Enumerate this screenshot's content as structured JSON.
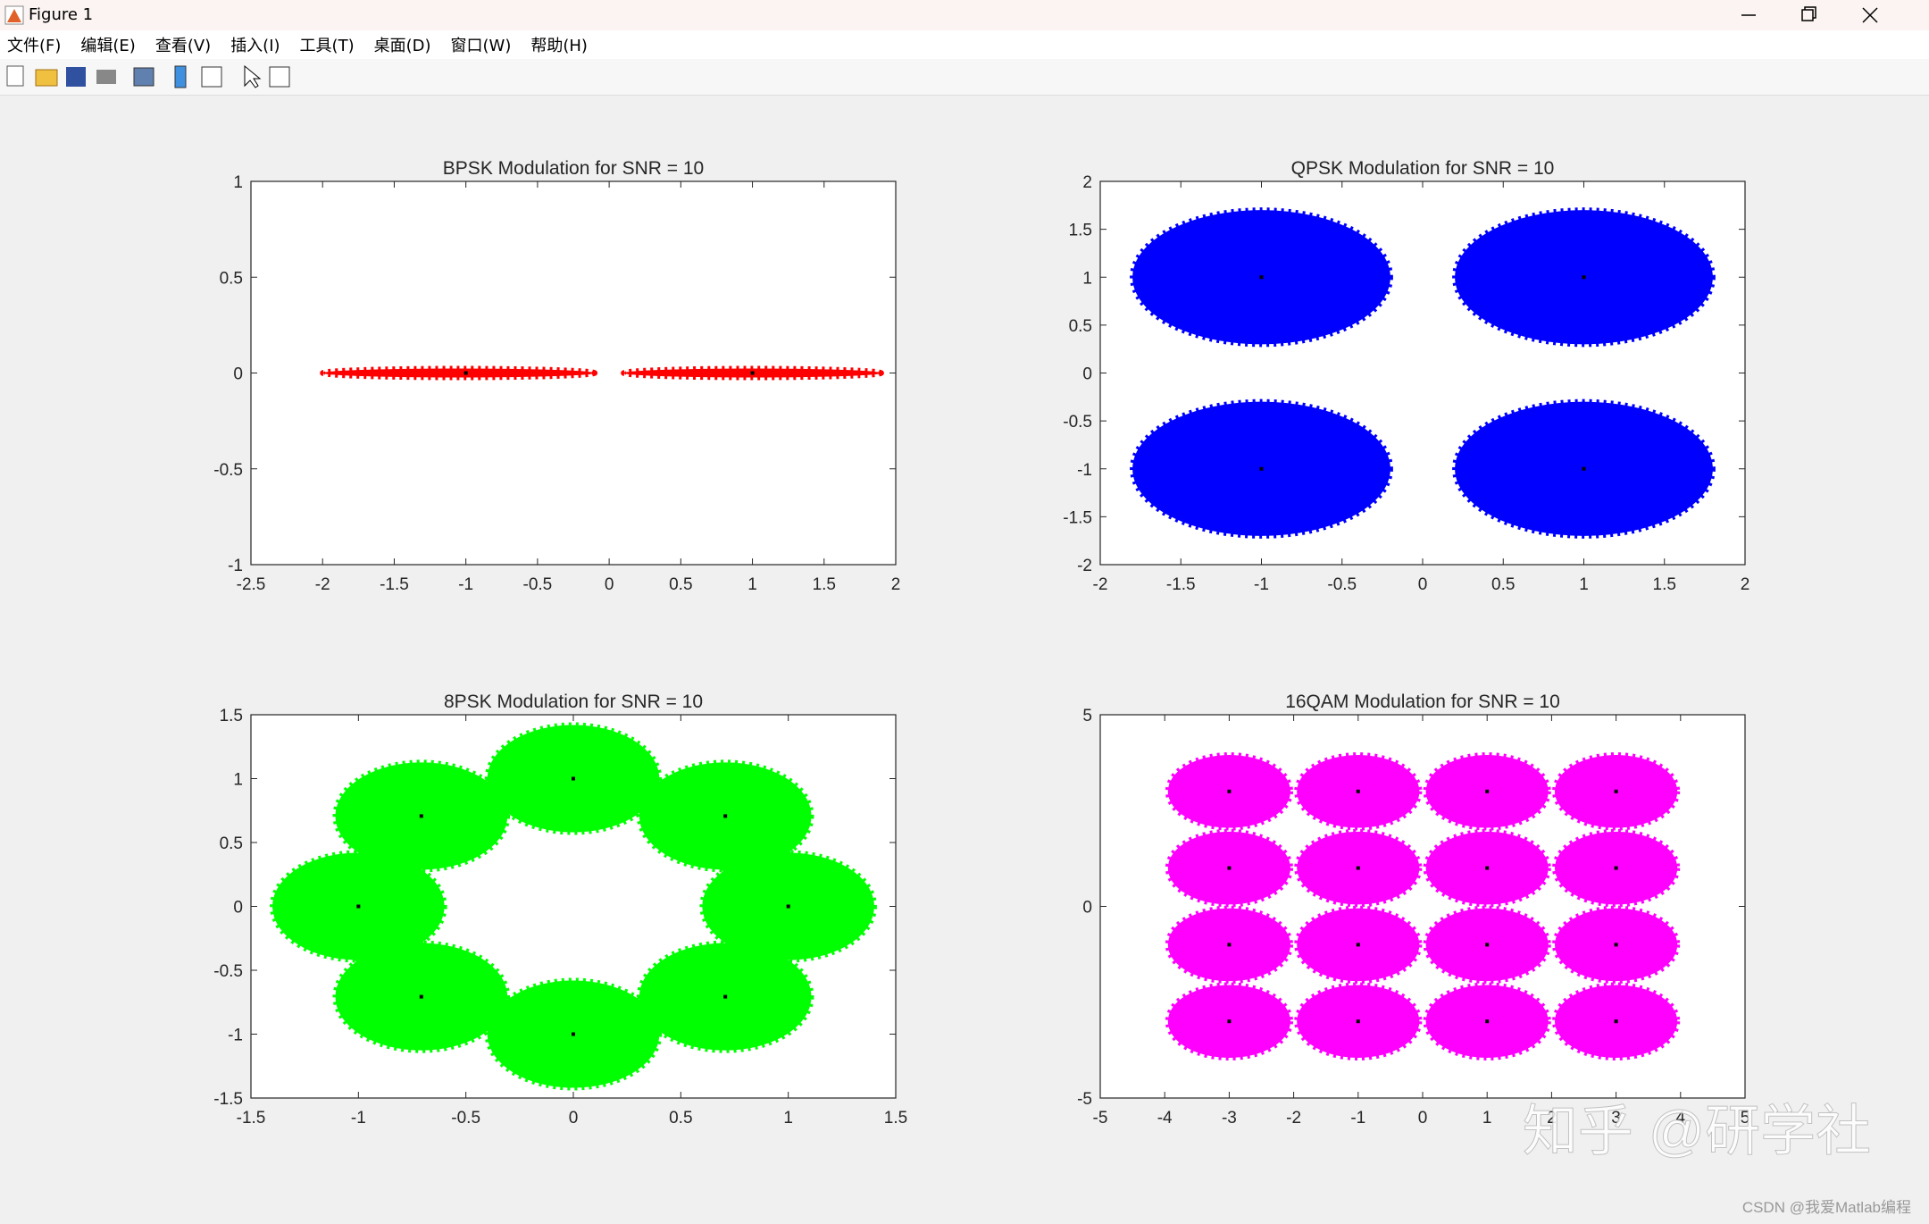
{
  "window": {
    "title": "Figure 1",
    "menu": [
      "文件(F)",
      "编辑(E)",
      "查看(V)",
      "插入(I)",
      "工具(T)",
      "桌面(D)",
      "窗口(W)",
      "帮助(H)"
    ],
    "watermark": "知乎 @研学社",
    "credit": "CSDN @我爱Matlab编程"
  },
  "chart_data": [
    {
      "type": "scatter",
      "title": "BPSK Modulation for SNR = 10",
      "xlim": [
        -2.5,
        2
      ],
      "ylim": [
        -1,
        1
      ],
      "xticks": [
        -2.5,
        -2,
        -1.5,
        -1,
        -0.5,
        0,
        0.5,
        1,
        1.5,
        2
      ],
      "yticks": [
        -1,
        -0.5,
        0,
        0.5,
        1
      ],
      "series": [
        {
          "color": "#ff0000",
          "x": [
            -1.05,
            1
          ],
          "y": [
            0,
            0
          ],
          "x_spread": [
            0.95,
            0.9
          ],
          "y_spread": [
            0,
            0
          ]
        },
        {
          "color": "#000000",
          "x": [
            -1,
            1
          ],
          "y": [
            0,
            0
          ]
        }
      ]
    },
    {
      "type": "scatter",
      "title": "QPSK Modulation for SNR = 10",
      "xlim": [
        -2,
        2
      ],
      "ylim": [
        -2,
        2
      ],
      "xticks": [
        -2,
        -1.5,
        -1,
        -0.5,
        0,
        0.5,
        1,
        1.5,
        2
      ],
      "yticks": [
        -2,
        -1.5,
        -1,
        -0.5,
        0,
        0.5,
        1,
        1.5,
        2
      ],
      "series": [
        {
          "color": "#0000ff",
          "x": [
            -1,
            1,
            -1,
            1
          ],
          "y": [
            1,
            1,
            -1,
            -1
          ],
          "x_spread": [
            0.8,
            0.8,
            0.8,
            0.8
          ],
          "y_spread": [
            0.7,
            0.7,
            0.7,
            0.7
          ]
        },
        {
          "color": "#000000",
          "x": [
            -1,
            1,
            -1,
            1
          ],
          "y": [
            1,
            1,
            -1,
            -1
          ]
        }
      ]
    },
    {
      "type": "scatter",
      "title": "8PSK Modulation for SNR = 10",
      "xlim": [
        -1.5,
        1.5
      ],
      "ylim": [
        -1.5,
        1.5
      ],
      "xticks": [
        -1.5,
        -1,
        -0.5,
        0,
        0.5,
        1,
        1.5
      ],
      "yticks": [
        -1.5,
        -1,
        -0.5,
        0,
        0.5,
        1,
        1.5
      ],
      "series": [
        {
          "color": "#00ff00",
          "x": [
            1,
            0.7071,
            0,
            -0.7071,
            -1,
            -0.7071,
            0,
            0.7071
          ],
          "y": [
            0,
            0.7071,
            1,
            0.7071,
            0,
            -0.7071,
            -1,
            -0.7071
          ],
          "x_spread": [
            0.4,
            0.4,
            0.4,
            0.4,
            0.4,
            0.4,
            0.4,
            0.4
          ],
          "y_spread": [
            0.42,
            0.42,
            0.42,
            0.42,
            0.42,
            0.42,
            0.42,
            0.42
          ]
        },
        {
          "color": "#000000",
          "x": [
            1,
            0.7071,
            0,
            -0.7071,
            -1,
            -0.7071,
            0,
            0.7071
          ],
          "y": [
            0,
            0.7071,
            1,
            0.7071,
            0,
            -0.7071,
            -1,
            -0.7071
          ]
        }
      ]
    },
    {
      "type": "scatter",
      "title": "16QAM Modulation for SNR = 10",
      "xlim": [
        -5,
        5
      ],
      "ylim": [
        -5,
        5
      ],
      "xticks": [
        -5,
        -4,
        -3,
        -2,
        -1,
        0,
        1,
        2,
        3,
        4,
        5
      ],
      "yticks": [
        -5,
        0,
        5
      ],
      "series": [
        {
          "color": "#ff00ff",
          "x": [
            -3,
            -1,
            1,
            3,
            -3,
            -1,
            1,
            3,
            -3,
            -1,
            1,
            3,
            -3,
            -1,
            1,
            3
          ],
          "y": [
            3,
            3,
            3,
            3,
            1,
            1,
            1,
            1,
            -1,
            -1,
            -1,
            -1,
            -3,
            -3,
            -3,
            -3
          ],
          "x_spread": [
            0.95,
            0.95,
            0.95,
            0.95,
            0.95,
            0.95,
            0.95,
            0.95,
            0.95,
            0.95,
            0.95,
            0.95,
            0.95,
            0.95,
            0.95,
            0.95
          ],
          "y_spread": [
            0.95,
            0.95,
            0.95,
            0.95,
            0.95,
            0.95,
            0.95,
            0.95,
            0.95,
            0.95,
            0.95,
            0.95,
            0.95,
            0.95,
            0.95,
            0.95
          ]
        },
        {
          "color": "#000000",
          "x": [
            -3,
            -1,
            1,
            3,
            -3,
            -1,
            1,
            3,
            -3,
            -1,
            1,
            3,
            -3,
            -1,
            1,
            3
          ],
          "y": [
            3,
            3,
            3,
            3,
            1,
            1,
            1,
            1,
            -1,
            -1,
            -1,
            -1,
            -3,
            -3,
            -3,
            -3
          ]
        }
      ]
    }
  ]
}
